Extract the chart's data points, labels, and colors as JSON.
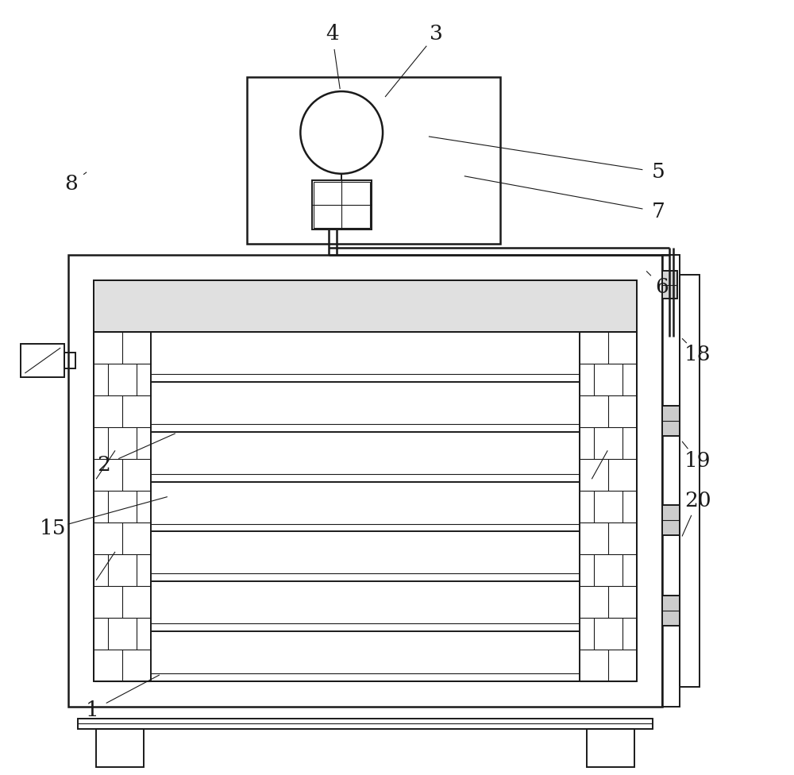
{
  "bg_color": "#ffffff",
  "line_color": "#1a1a1a",
  "lw": 1.4,
  "lw_thin": 0.8,
  "lw_thick": 1.8,
  "font_size": 19
}
